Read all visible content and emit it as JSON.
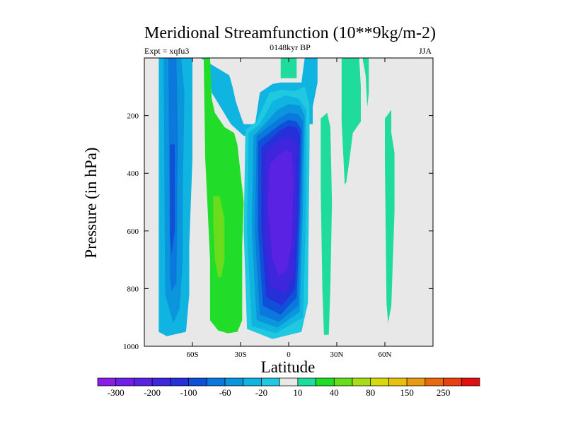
{
  "chart_data": {
    "type": "heatmap",
    "title": "Meridional Streamfunction (10**9kg/m-2)",
    "left_label": "Expt = xqfu3",
    "center_label": "0148kyr BP",
    "right_label": "JJA",
    "xlabel": "Latitude",
    "ylabel": "Pressure (in hPa)",
    "xlim": [
      -90,
      90
    ],
    "ylim": [
      1000,
      0
    ],
    "x_ticks": [
      {
        "value": -60,
        "label": "60S"
      },
      {
        "value": -30,
        "label": "30S"
      },
      {
        "value": 0,
        "label": "0"
      },
      {
        "value": 30,
        "label": "30N"
      },
      {
        "value": 60,
        "label": "60N"
      }
    ],
    "y_ticks": [
      {
        "value": 200,
        "label": "200"
      },
      {
        "value": 400,
        "label": "400"
      },
      {
        "value": 600,
        "label": "600"
      },
      {
        "value": 800,
        "label": "800"
      },
      {
        "value": 1000,
        "label": "1000"
      }
    ],
    "colorbar": {
      "levels": [
        -300,
        -250,
        -200,
        -150,
        -100,
        -80,
        -60,
        -40,
        -20,
        -10,
        10,
        20,
        40,
        60,
        80,
        100,
        150,
        200,
        250,
        300
      ],
      "labels": [
        "-300",
        "-200",
        "-100",
        "-60",
        "-20",
        "10",
        "40",
        "80",
        "150",
        "250"
      ],
      "colors": [
        "#8a1ee8",
        "#6f1fe6",
        "#5a22e2",
        "#3d26dc",
        "#2530d8",
        "#1050d8",
        "#0a78dc",
        "#0a95dc",
        "#10b4e0",
        "#20c8e0",
        "#e8e8e8",
        "#1fdc9c",
        "#22dc2a",
        "#6adc1c",
        "#a8dc18",
        "#d8d810",
        "#e8c010",
        "#e89a10",
        "#e86a10",
        "#e84010",
        "#e01010"
      ]
    },
    "background_color": "#e8e8e8",
    "regions": [
      {
        "name": "sh-jet-outer",
        "color": "#10b4e0",
        "lat": [
          -81,
          -80,
          -76,
          -73,
          -64,
          -60,
          -60,
          -62,
          -62,
          -64,
          -76,
          -81
        ],
        "p": [
          0,
          0,
          0,
          0,
          0,
          0,
          350,
          650,
          820,
          950,
          965,
          950
        ]
      },
      {
        "name": "sh-jet-core",
        "color": "#0a95dc",
        "lat": [
          -78,
          -73,
          -67,
          -65,
          -66,
          -66,
          -68,
          -72,
          -74,
          -77
        ],
        "p": [
          0,
          0,
          0,
          120,
          450,
          700,
          870,
          920,
          880,
          820
        ]
      },
      {
        "name": "sh-jet-deep",
        "color": "#0a78dc",
        "lat": [
          -75,
          -70,
          -69,
          -70,
          -73,
          -74
        ],
        "p": [
          0,
          0,
          280,
          780,
          810,
          760
        ]
      },
      {
        "name": "sh-jet-peak",
        "color": "#1050d8",
        "lat": [
          -74,
          -71,
          -71,
          -73,
          -74
        ],
        "p": [
          300,
          300,
          600,
          680,
          620
        ]
      },
      {
        "name": "cyan-east-column",
        "color": "#10b4e0",
        "lat": [
          -55,
          -50,
          -48,
          -36,
          -28,
          -22,
          -18,
          -10,
          -5,
          5,
          8,
          10,
          13,
          13,
          18,
          18,
          15,
          15,
          -8,
          -28,
          -30,
          -33,
          -35,
          -37,
          -55
        ],
        "p": [
          0,
          0,
          120,
          230,
          270,
          270,
          120,
          90,
          85,
          85,
          85,
          0,
          0,
          0,
          0,
          85,
          170,
          230,
          230,
          230,
          200,
          150,
          100,
          60,
          0
        ]
      },
      {
        "name": "green-band",
        "color": "#22dc2a",
        "lat": [
          -53,
          -49,
          -48,
          -46,
          -40,
          -34,
          -32,
          -30,
          -28,
          -29,
          -29,
          -29,
          -32,
          -38,
          -44,
          -49,
          -49,
          -52
        ],
        "p": [
          0,
          0,
          140,
          190,
          240,
          260,
          300,
          400,
          500,
          650,
          800,
          910,
          950,
          955,
          945,
          910,
          700,
          350
        ]
      },
      {
        "name": "lime-core",
        "color": "#6adc1c",
        "lat": [
          -47,
          -43,
          -40,
          -40,
          -42,
          -44,
          -46,
          -47
        ],
        "p": [
          480,
          480,
          560,
          700,
          760,
          760,
          700,
          580
        ]
      },
      {
        "name": "nh-cap",
        "color": "#1fdc9c",
        "lat": [
          -5,
          5,
          5,
          -5
        ],
        "p": [
          0,
          0,
          70,
          70
        ]
      },
      {
        "name": "hadley-outer",
        "color": "#20c8e0",
        "lat": [
          -27,
          -20,
          -12,
          -4,
          4,
          10,
          13,
          13,
          12,
          8,
          -10,
          -26,
          -28
        ],
        "p": [
          250,
          220,
          120,
          110,
          115,
          100,
          160,
          300,
          850,
          950,
          975,
          940,
          600
        ]
      },
      {
        "name": "hadley-1",
        "color": "#10b4e0",
        "lat": [
          -25,
          -18,
          -10,
          -2,
          6,
          11,
          11,
          9,
          -8,
          -23,
          -26
        ],
        "p": [
          260,
          230,
          150,
          130,
          140,
          180,
          500,
          900,
          955,
          930,
          600
        ]
      },
      {
        "name": "hadley-2",
        "color": "#0a95dc",
        "lat": [
          -22,
          -15,
          -7,
          0,
          7,
          10,
          9,
          7,
          -7,
          -20,
          -23
        ],
        "p": [
          270,
          230,
          180,
          160,
          165,
          200,
          500,
          880,
          935,
          910,
          600
        ]
      },
      {
        "name": "hadley-3",
        "color": "#0a78dc",
        "lat": [
          -20,
          -13,
          -6,
          0,
          6,
          9,
          8,
          6,
          -6,
          -18,
          -21
        ],
        "p": [
          270,
          240,
          210,
          190,
          195,
          220,
          520,
          860,
          915,
          890,
          600
        ]
      },
      {
        "name": "hadley-4",
        "color": "#1050d8",
        "lat": [
          -19,
          -12,
          -5,
          0,
          5,
          8,
          7,
          5,
          -5,
          -16,
          -19
        ],
        "p": [
          290,
          260,
          230,
          215,
          220,
          250,
          530,
          830,
          890,
          860,
          600
        ]
      },
      {
        "name": "hadley-5",
        "color": "#2530d8",
        "lat": [
          -17,
          -11,
          -5,
          0,
          5,
          7,
          6,
          4,
          -4,
          -14,
          -17
        ],
        "p": [
          310,
          280,
          250,
          235,
          240,
          270,
          540,
          800,
          860,
          830,
          600
        ]
      },
      {
        "name": "hadley-6",
        "color": "#3d26dc",
        "lat": [
          -15,
          -9,
          -3,
          2,
          5,
          5,
          3,
          -3,
          -12,
          -15
        ],
        "p": [
          330,
          300,
          275,
          275,
          300,
          550,
          760,
          820,
          790,
          600
        ]
      },
      {
        "name": "hadley-core",
        "color": "#5a22e2",
        "lat": [
          -12,
          -7,
          -2,
          2,
          3,
          2,
          -1,
          -6,
          -10,
          -13
        ],
        "p": [
          370,
          340,
          320,
          330,
          420,
          650,
          730,
          760,
          700,
          520
        ]
      },
      {
        "name": "nh-streak-1",
        "color": "#1fdc9c",
        "lat": [
          20,
          24,
          26,
          27,
          26,
          25,
          22,
          21,
          20
        ],
        "p": [
          210,
          190,
          240,
          500,
          800,
          960,
          960,
          800,
          450
        ]
      },
      {
        "name": "nh-streak-2",
        "color": "#1fdc9c",
        "lat": [
          33,
          38,
          44,
          45,
          45,
          40,
          38,
          36,
          35,
          33
        ],
        "p": [
          0,
          0,
          0,
          100,
          220,
          260,
          350,
          430,
          440,
          220
        ]
      },
      {
        "name": "nh-streak-3",
        "color": "#1fdc9c",
        "lat": [
          46,
          50,
          50,
          49,
          48
        ],
        "p": [
          0,
          0,
          120,
          170,
          60
        ]
      },
      {
        "name": "nh-streak-4",
        "color": "#1fdc9c",
        "lat": [
          60,
          64,
          64,
          66,
          66,
          64,
          62,
          61,
          60
        ],
        "p": [
          210,
          180,
          260,
          330,
          530,
          860,
          920,
          850,
          350
        ]
      }
    ]
  }
}
